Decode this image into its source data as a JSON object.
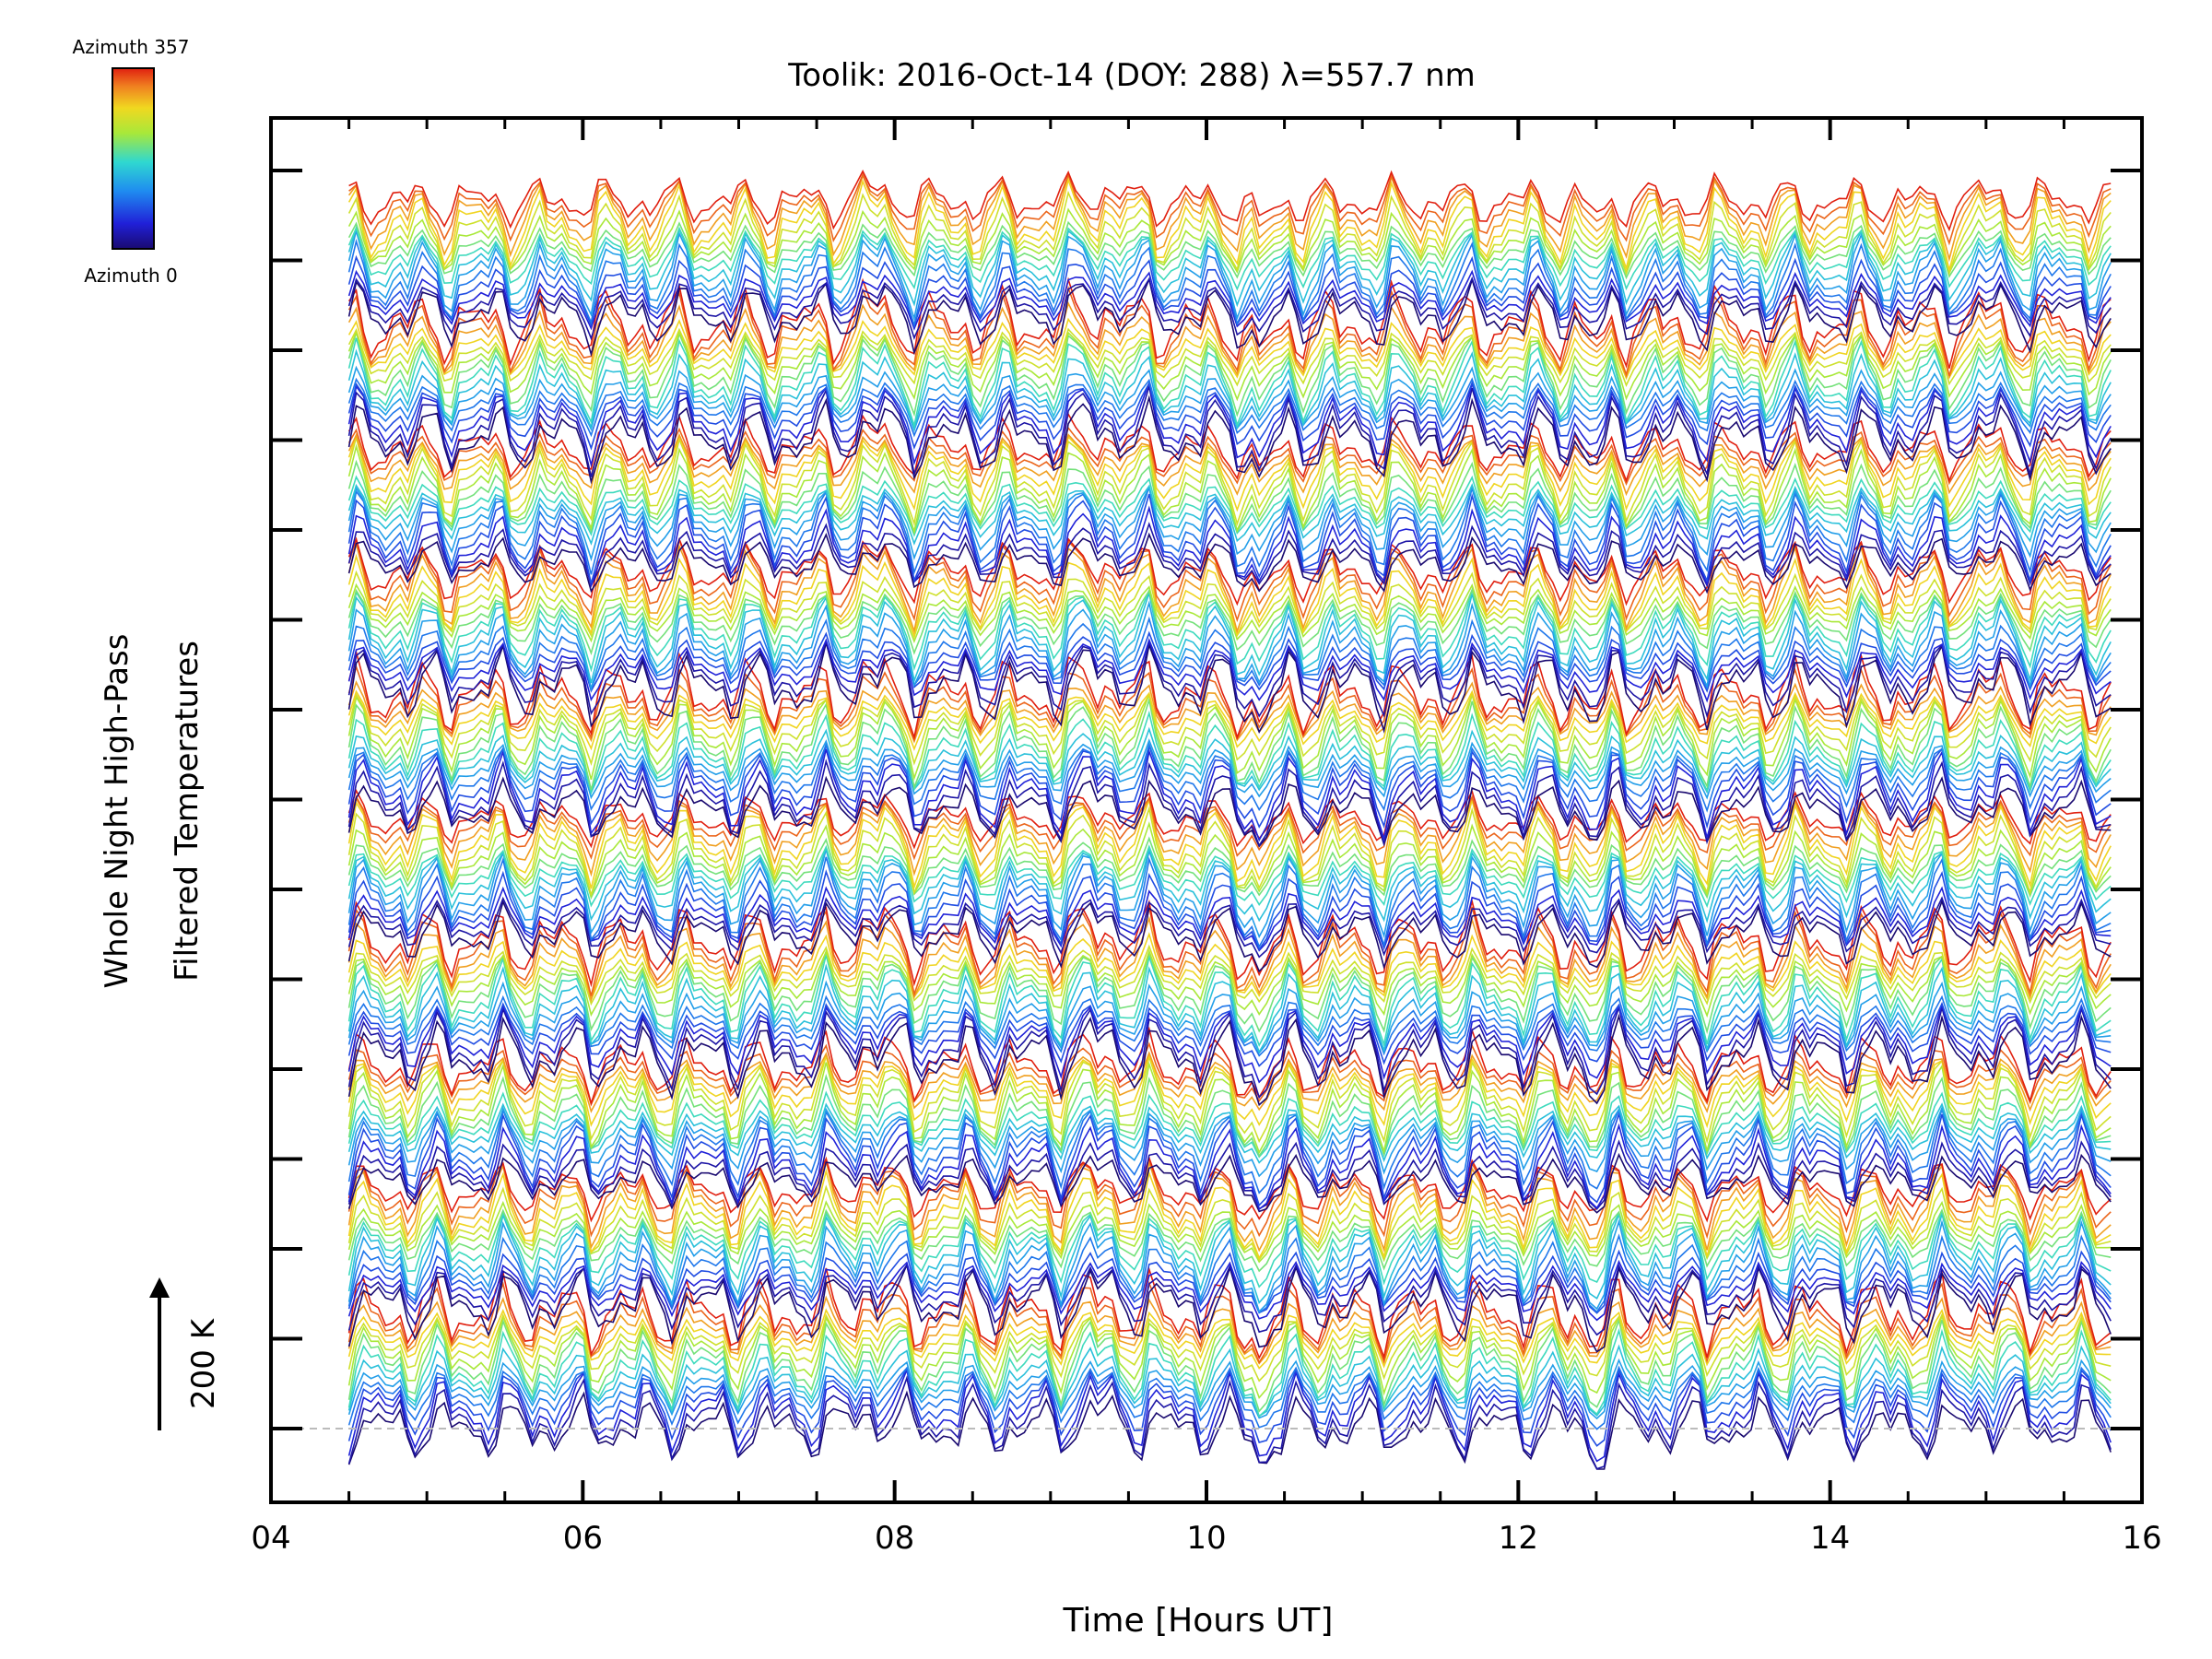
{
  "chart_data": {
    "type": "line",
    "title": "Toolik: 2016-Oct-14 (DOY: 288) λ=557.7 nm",
    "xlabel": "Time [Hours UT]",
    "ylabel_line1": "Whole Night High-Pass",
    "ylabel_line2": "Filtered Temperatures",
    "x_ticks": [
      "04",
      "06",
      "08",
      "10",
      "12",
      "14",
      "16"
    ],
    "xlim": [
      4,
      16
    ],
    "time_range": [
      4.5,
      15.8
    ],
    "y_tick_count": 15,
    "scale_bar_label": "200 K",
    "series_count": 150,
    "groups": 10,
    "colorbar": {
      "label_top": "Azimuth 357",
      "label_bottom": "Azimuth 0",
      "azimuth_range": [
        0,
        357
      ],
      "colors": [
        "#1a0a70",
        "#2020d8",
        "#1f8cf0",
        "#2fd8d0",
        "#a8e83a",
        "#f0d820",
        "#f08020",
        "#e02010"
      ]
    },
    "colors": {
      "axis": "#000000",
      "baseline": "#bbbbbb"
    }
  }
}
